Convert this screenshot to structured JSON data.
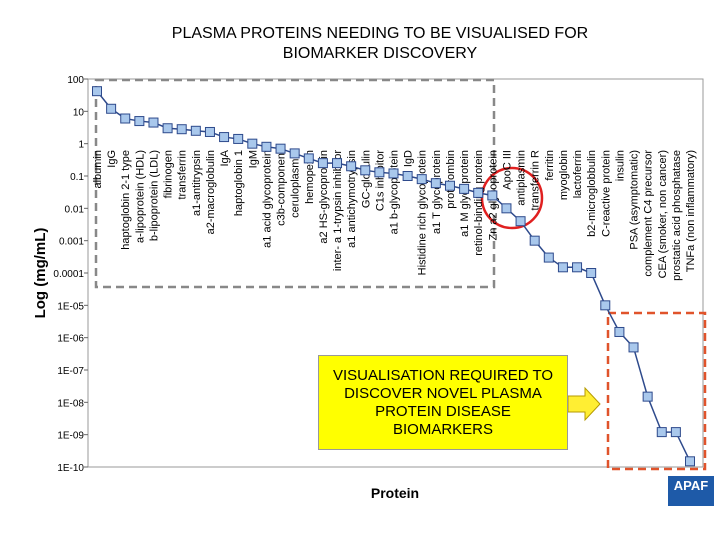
{
  "chart_data": {
    "type": "line",
    "title": "PLASMA PROTEINS NEEDING TO BE VISUALISED FOR BIOMARKER DISCOVERY",
    "ylabel": "Log (mg/mL)",
    "xlabel": "Protein",
    "annotation": "VISUALISATION REQUIRED TO DISCOVER NOVEL PLASMA PROTEIN DISEASE BIOMARKERS",
    "logo": "APAF",
    "log_scale": true,
    "color": "#2e4a8c",
    "marker_color": "#a9c8ec",
    "categories": [
      "albumin",
      "IgG",
      "haptoglobin 2-1 type",
      "a-lipoprotein (HDL)",
      "b-lipoprotein (LDL)",
      "fibrinogen",
      "transferrin",
      "a1-antitrypsin",
      "a2-macroglobulin",
      "IgA",
      "haptoglobin 1",
      "IgM",
      "a1 acid glycoprotein",
      "c3b-component",
      "ceruloplasmin",
      "hemopexin",
      "a2 HS-glycoprotein",
      "inter- a 1-trypsin inhibitor",
      "a1 antichymotrypsin",
      "GC-globulin",
      "C1s inhibitor",
      "a1 b-glycoprotein",
      "IgD",
      "Histidine rich glycoprotein",
      "a1 T glycoprotein",
      "prothrombin",
      "a1 M glycoprotein",
      "retinol-binding protein",
      "Zn a2 glycoprotein",
      "ApoC III",
      "antiplasmin",
      "transferrin R",
      "ferritin",
      "myoglobin",
      "lactoferrin",
      "b2-microglobbulin",
      "C-reactive protein",
      "insulin",
      "PSA (asymptomatic)",
      "complement C4 precursor",
      "CEA (smoker, non cancer)",
      "prostatic acid phosphatase",
      "TNFa (non inflammatory)"
    ],
    "values": [
      42,
      12,
      6,
      5,
      4.5,
      3,
      2.8,
      2.5,
      2.3,
      1.6,
      1.4,
      1,
      0.8,
      0.7,
      0.5,
      0.35,
      0.25,
      0.25,
      0.2,
      0.15,
      0.13,
      0.12,
      0.1,
      0.08,
      0.06,
      0.05,
      0.04,
      0.03,
      0.025,
      0.01,
      0.004,
      0.001,
      0.0003,
      0.00015,
      0.00015,
      0.0001,
      1e-05,
      1.5e-06,
      5e-07,
      1.5e-08,
      1.2e-09,
      1.2e-09,
      1.5e-10
    ],
    "ylim": [
      1e-10,
      100
    ],
    "yticks": [
      100,
      10,
      1,
      0.1,
      0.01,
      0.001,
      0.0001,
      {
        "value": 1e-05,
        "label": "1E-05"
      },
      {
        "value": 1e-06,
        "label": "1E-06"
      },
      {
        "value": 1e-07,
        "label": "1E-07"
      },
      {
        "value": 1e-08,
        "label": "1E-08"
      },
      {
        "value": 1e-09,
        "label": "1E-09"
      },
      {
        "value": 1e-10,
        "label": "1E-10"
      }
    ]
  }
}
